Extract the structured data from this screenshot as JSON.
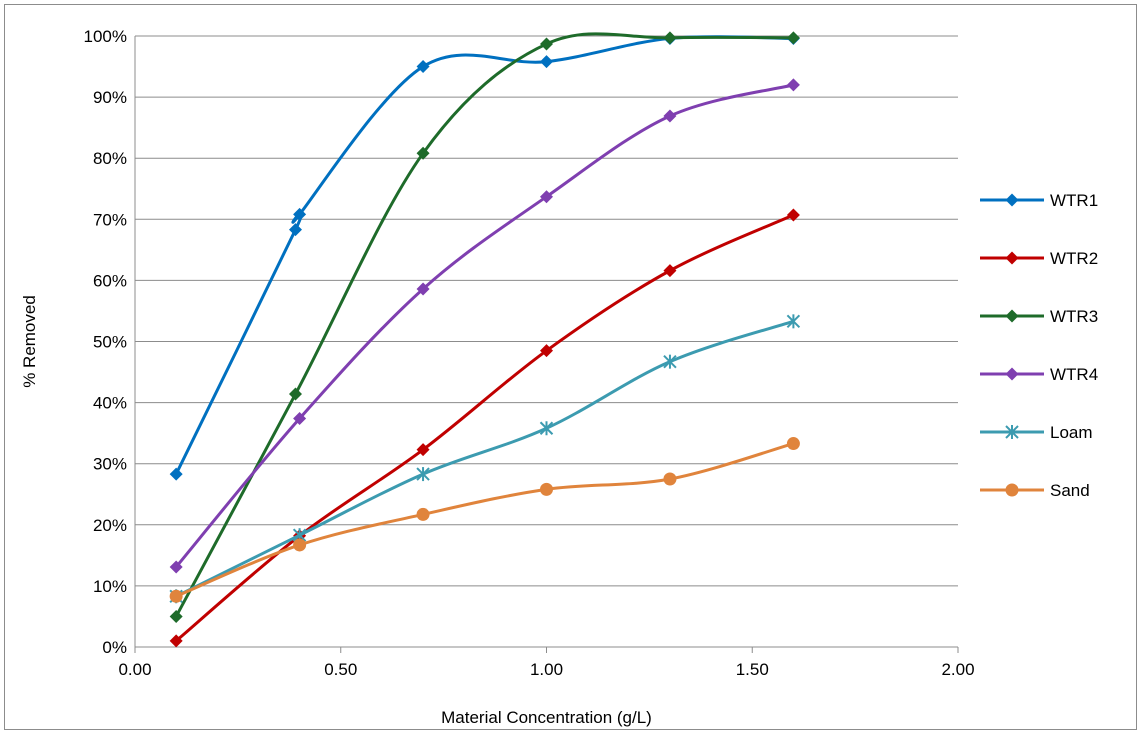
{
  "chart_data": {
    "type": "scatter",
    "title": "",
    "xlabel": "Material Concentration (g/L)",
    "ylabel": "% Removed",
    "xlim": [
      0,
      2
    ],
    "ylim": [
      0,
      100
    ],
    "x_ticks": [
      "0.00",
      "0.50",
      "1.00",
      "1.50",
      "2.00"
    ],
    "y_ticks": [
      "0%",
      "10%",
      "20%",
      "30%",
      "40%",
      "50%",
      "60%",
      "70%",
      "80%",
      "90%",
      "100%"
    ],
    "x_tick_values": [
      0,
      0.5,
      1.0,
      1.5,
      2.0
    ],
    "y_tick_values": [
      0,
      10,
      20,
      30,
      40,
      50,
      60,
      70,
      80,
      90,
      100
    ],
    "grid": "horizontal",
    "smooth_lines": true,
    "legend_position": "right",
    "series": [
      {
        "name": "WTR1",
        "color": "#0070C0",
        "marker": "diamond",
        "points": [
          [
            0.1,
            28.3
          ],
          [
            0.39,
            68.3
          ],
          [
            0.4,
            70.8
          ],
          [
            0.7,
            95.0
          ],
          [
            1.0,
            95.8
          ],
          [
            1.3,
            99.6
          ],
          [
            1.6,
            99.6
          ]
        ]
      },
      {
        "name": "WTR2",
        "color": "#C00000",
        "marker": "diamond",
        "points": [
          [
            0.1,
            1.0
          ],
          [
            0.4,
            18.2
          ],
          [
            0.7,
            32.3
          ],
          [
            1.0,
            48.5
          ],
          [
            1.3,
            61.6
          ],
          [
            1.6,
            70.7
          ]
        ]
      },
      {
        "name": "WTR3",
        "color": "#1E6B2A",
        "marker": "diamond",
        "points": [
          [
            0.1,
            5.0
          ],
          [
            0.39,
            41.4
          ],
          [
            0.7,
            80.8
          ],
          [
            1.0,
            98.7
          ],
          [
            1.3,
            99.7
          ],
          [
            1.6,
            99.7
          ]
        ]
      },
      {
        "name": "WTR4",
        "color": "#7F3FB0",
        "marker": "diamond",
        "points": [
          [
            0.1,
            13.1
          ],
          [
            0.4,
            37.4
          ],
          [
            0.7,
            58.6
          ],
          [
            1.0,
            73.7
          ],
          [
            1.3,
            86.9
          ],
          [
            1.6,
            92.0
          ]
        ]
      },
      {
        "name": "Loam",
        "color": "#3C9BB0",
        "marker": "star",
        "points": [
          [
            0.1,
            8.3
          ],
          [
            0.4,
            18.3
          ],
          [
            0.7,
            28.3
          ],
          [
            1.0,
            35.8
          ],
          [
            1.3,
            46.7
          ],
          [
            1.6,
            53.3
          ]
        ]
      },
      {
        "name": "Sand",
        "color": "#E0843C",
        "marker": "circle",
        "points": [
          [
            0.1,
            8.3
          ],
          [
            0.4,
            16.7
          ],
          [
            0.7,
            21.7
          ],
          [
            1.0,
            25.8
          ],
          [
            1.3,
            27.5
          ],
          [
            1.6,
            33.3
          ]
        ]
      }
    ]
  }
}
